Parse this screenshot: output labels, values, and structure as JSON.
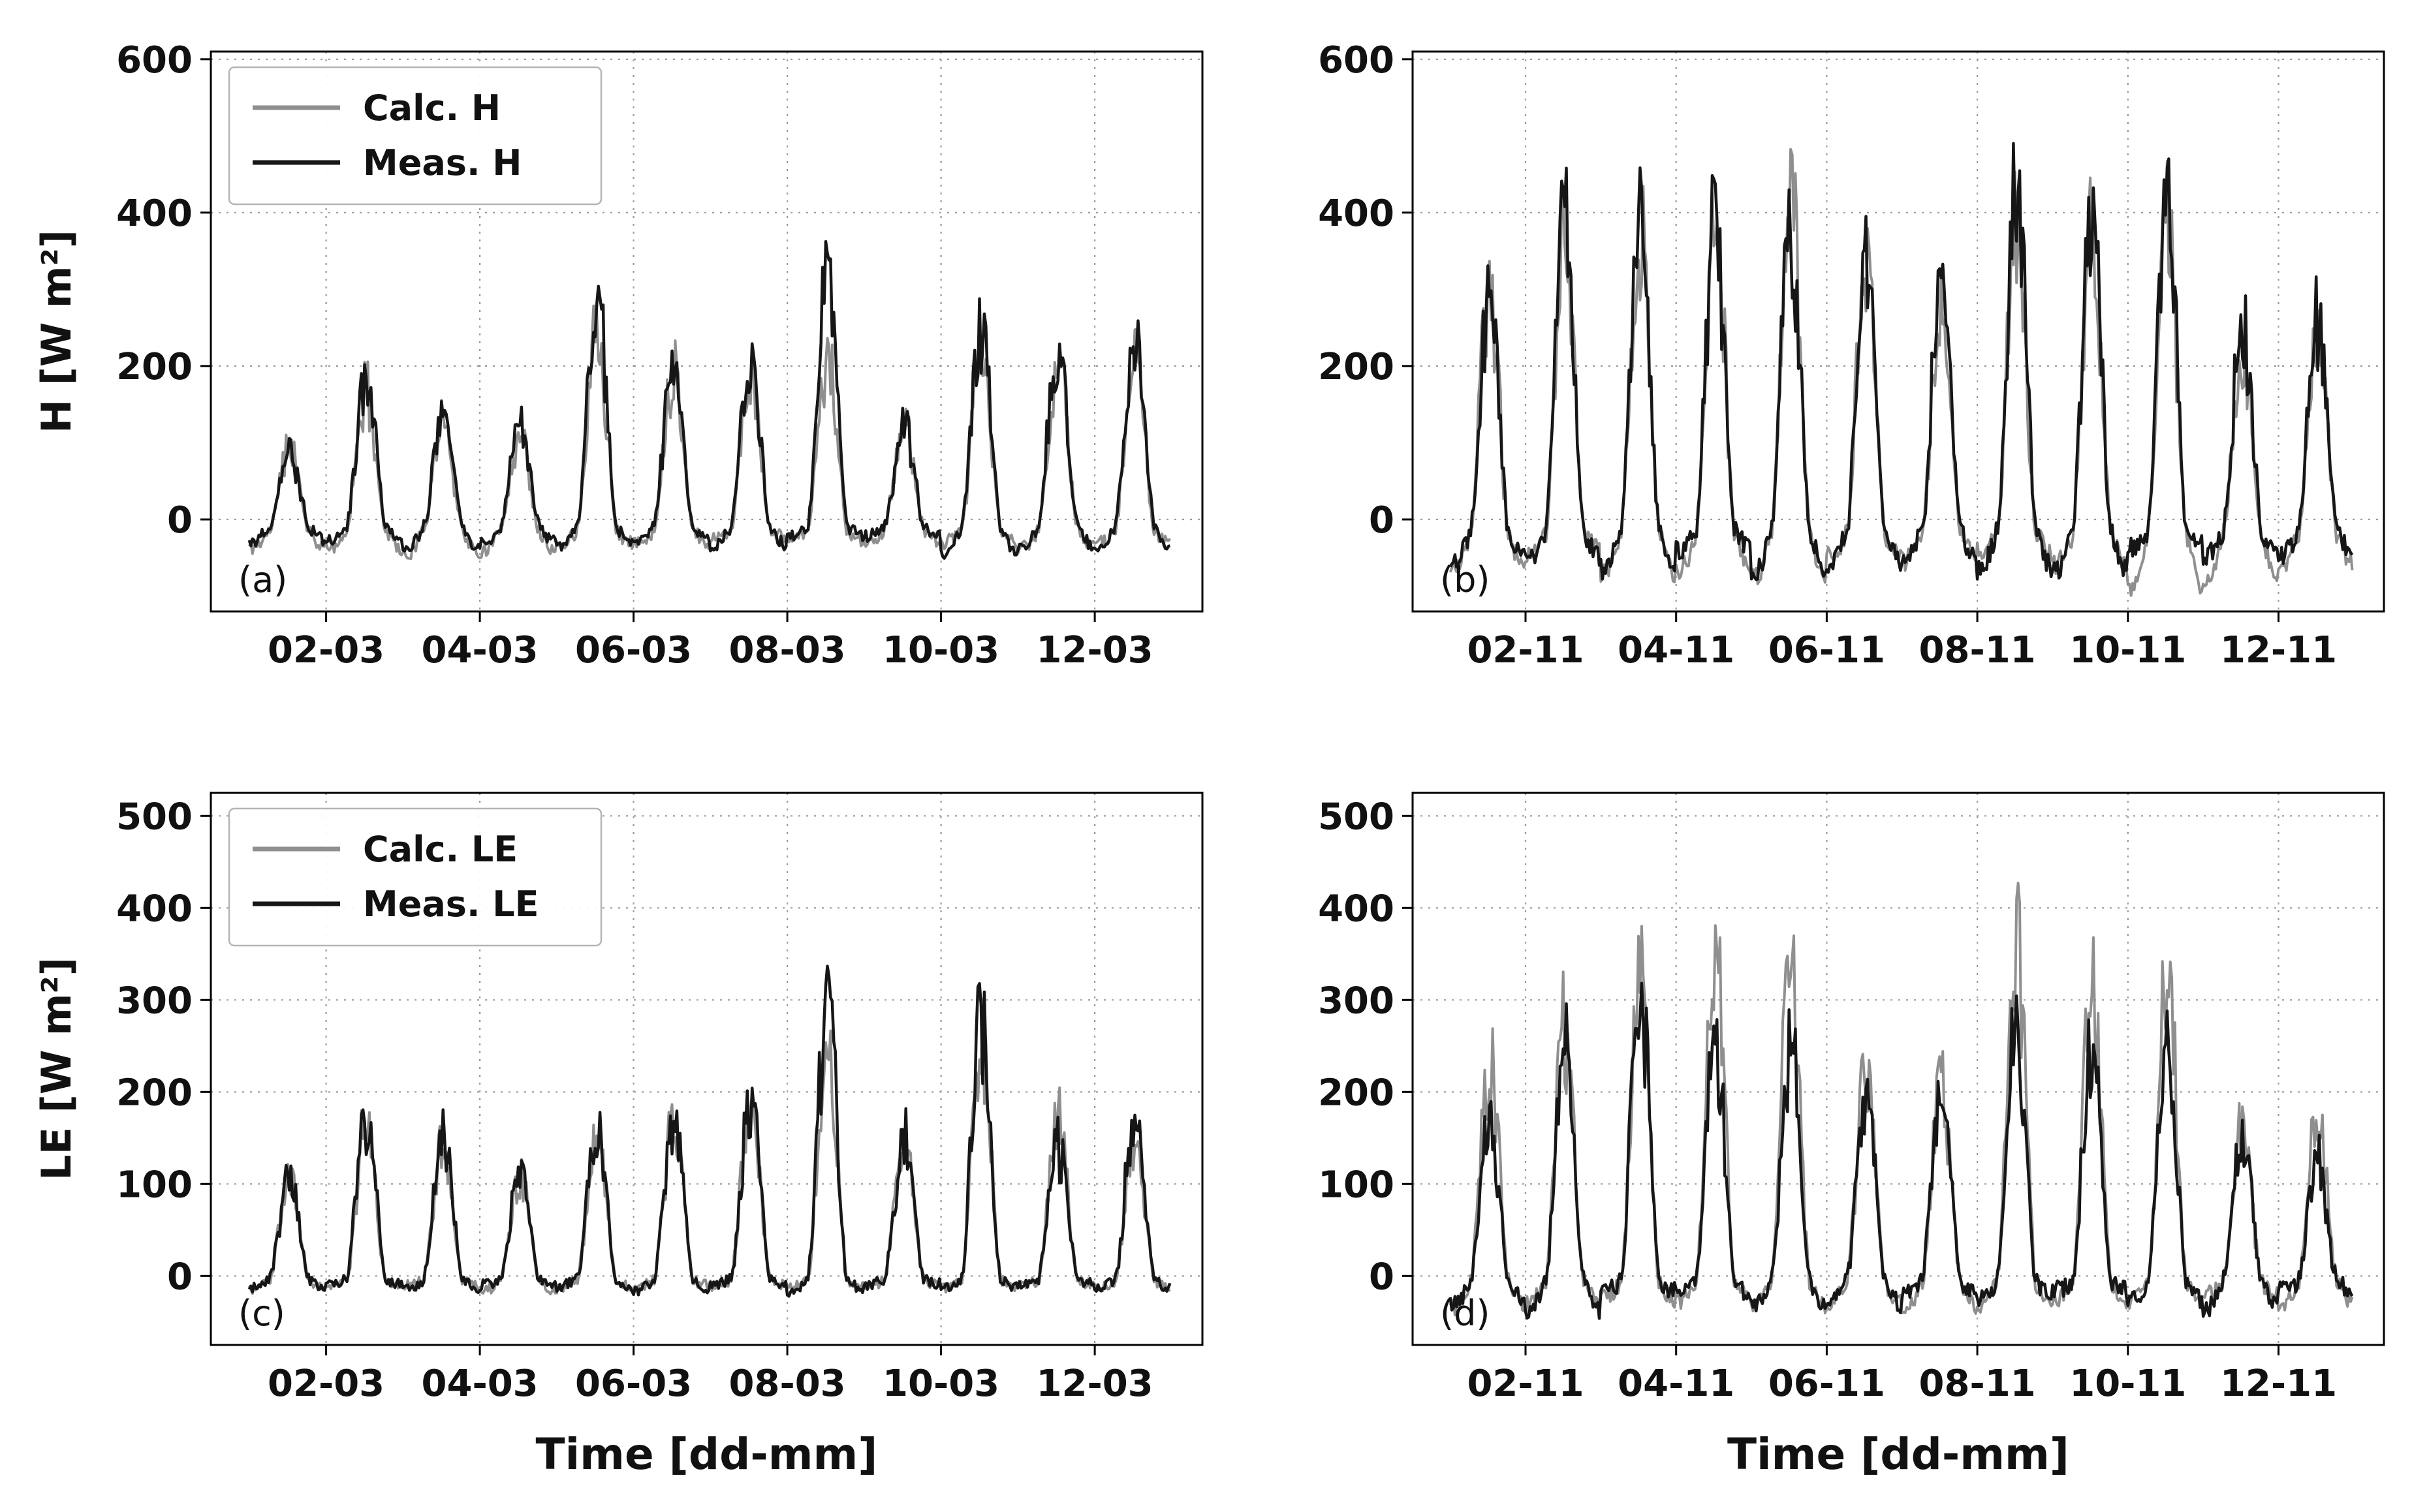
{
  "figure": {
    "background": "#ffffff",
    "grid_color": "#9a9a9a",
    "spine_color": "#000000",
    "calc_color": "#8f8f8f",
    "meas_color": "#161616"
  },
  "chart_data": [
    {
      "id": "a",
      "type": "line",
      "panel_label": "(a)",
      "title": "",
      "xlabel": "",
      "ylabel": "H [W m²]",
      "xlim": [
        0.5,
        13.4
      ],
      "ylim": [
        -120,
        610
      ],
      "y_ticks": [
        0,
        200,
        400,
        600
      ],
      "x_tick_positions": [
        2,
        4,
        6,
        8,
        10,
        12
      ],
      "x_tick_labels": [
        "02-03",
        "04-03",
        "06-03",
        "08-03",
        "10-03",
        "12-03"
      ],
      "grid": true,
      "legend": {
        "visible": true,
        "position": "upper-left",
        "entries": [
          {
            "label": "Calc. H",
            "color": "#8f8f8f"
          },
          {
            "label": "Meas. H",
            "color": "#161616"
          }
        ]
      },
      "start_day": 1.0,
      "n_days": 12,
      "series": [
        {
          "name": "Calc. H",
          "color": "#8f8f8f",
          "line_width": 4,
          "daily_peaks": [
            130,
            205,
            165,
            145,
            300,
            240,
            235,
            250,
            160,
            255,
            250,
            255
          ],
          "base": -15,
          "night_amp": 35,
          "jitter": 9,
          "seed": 11
        },
        {
          "name": "Meas. H",
          "color": "#161616",
          "line_width": 4.5,
          "daily_peaks": [
            120,
            230,
            170,
            150,
            335,
            250,
            240,
            370,
            148,
            290,
            262,
            288
          ],
          "base": -10,
          "night_amp": 40,
          "jitter": 8,
          "seed": 12
        }
      ]
    },
    {
      "id": "b",
      "type": "line",
      "panel_label": "(b)",
      "title": "",
      "xlabel": "",
      "ylabel": "",
      "xlim": [
        0.5,
        13.4
      ],
      "ylim": [
        -120,
        610
      ],
      "y_ticks": [
        0,
        200,
        400,
        600
      ],
      "x_tick_positions": [
        2,
        4,
        6,
        8,
        10,
        12
      ],
      "x_tick_labels": [
        "02-11",
        "04-11",
        "06-11",
        "08-11",
        "10-11",
        "12-11"
      ],
      "grid": true,
      "legend": {
        "visible": false,
        "position": "",
        "entries": []
      },
      "start_day": 1.0,
      "n_days": 12,
      "series": [
        {
          "name": "Calc. H",
          "color": "#8f8f8f",
          "line_width": 4,
          "daily_peaks": [
            365,
            430,
            445,
            470,
            515,
            400,
            345,
            455,
            430,
            445,
            255,
            300
          ],
          "base": -20,
          "night_amp": 75,
          "jitter": 14,
          "seed": 21
        },
        {
          "name": "Meas. H",
          "color": "#161616",
          "line_width": 4.5,
          "daily_peaks": [
            355,
            468,
            462,
            455,
            440,
            395,
            360,
            522,
            450,
            468,
            318,
            308
          ],
          "base": -15,
          "night_amp": 55,
          "jitter": 14,
          "seed": 22
        }
      ]
    },
    {
      "id": "c",
      "type": "line",
      "panel_label": "(c)",
      "title": "",
      "xlabel": "Time [dd-mm]",
      "ylabel": "LE [W m²]",
      "xlim": [
        0.5,
        13.4
      ],
      "ylim": [
        -75,
        525
      ],
      "y_ticks": [
        0,
        100,
        200,
        300,
        400,
        500
      ],
      "x_tick_positions": [
        2,
        4,
        6,
        8,
        10,
        12
      ],
      "x_tick_labels": [
        "02-03",
        "04-03",
        "06-03",
        "08-03",
        "10-03",
        "12-03"
      ],
      "grid": true,
      "legend": {
        "visible": true,
        "position": "upper-left",
        "entries": [
          {
            "label": "Calc. LE",
            "color": "#8f8f8f"
          },
          {
            "label": "Meas. LE",
            "color": "#161616"
          }
        ]
      },
      "start_day": 1.0,
      "n_days": 12,
      "series": [
        {
          "name": "Calc. LE",
          "color": "#8f8f8f",
          "line_width": 4,
          "daily_peaks": [
            118,
            195,
            163,
            125,
            175,
            192,
            205,
            262,
            170,
            285,
            196,
            168
          ],
          "base": -5,
          "night_amp": 12,
          "jitter": 6,
          "seed": 31
        },
        {
          "name": "Meas. LE",
          "color": "#161616",
          "line_width": 4.5,
          "daily_peaks": [
            124,
            208,
            170,
            130,
            180,
            198,
            208,
            332,
            175,
            308,
            163,
            193
          ],
          "base": -4,
          "night_amp": 14,
          "jitter": 6,
          "seed": 32
        }
      ]
    },
    {
      "id": "d",
      "type": "line",
      "panel_label": "(d)",
      "title": "",
      "xlabel": "Time [dd-mm]",
      "ylabel": "",
      "xlim": [
        0.5,
        13.4
      ],
      "ylim": [
        -75,
        525
      ],
      "y_ticks": [
        0,
        100,
        200,
        300,
        400,
        500
      ],
      "x_tick_positions": [
        2,
        4,
        6,
        8,
        10,
        12
      ],
      "x_tick_labels": [
        "02-11",
        "04-11",
        "06-11",
        "08-11",
        "10-11",
        "12-11"
      ],
      "grid": true,
      "legend": {
        "visible": false,
        "position": "",
        "entries": []
      },
      "start_day": 1.0,
      "n_days": 12,
      "series": [
        {
          "name": "Calc. LE",
          "color": "#8f8f8f",
          "line_width": 4,
          "daily_peaks": [
            278,
            318,
            358,
            393,
            388,
            253,
            243,
            408,
            378,
            373,
            185,
            208
          ],
          "base": -8,
          "night_amp": 30,
          "jitter": 10,
          "seed": 41
        },
        {
          "name": "Meas. LE",
          "color": "#161616",
          "line_width": 4.5,
          "daily_peaks": [
            198,
            298,
            362,
            298,
            283,
            228,
            238,
            318,
            278,
            278,
            183,
            148
          ],
          "base": -6,
          "night_amp": 35,
          "jitter": 10,
          "seed": 42
        }
      ]
    }
  ]
}
